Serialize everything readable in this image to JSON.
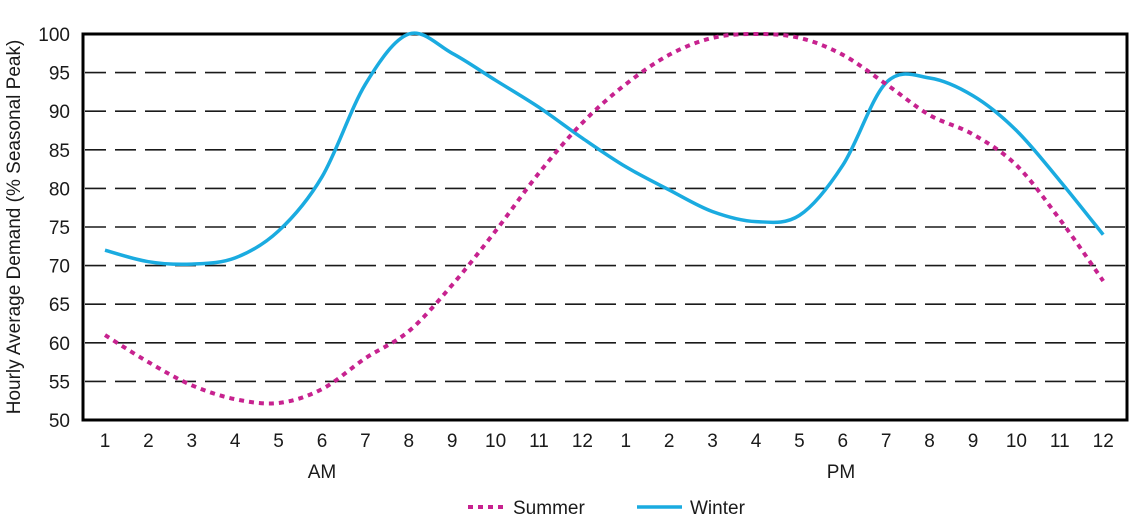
{
  "chart_data": {
    "type": "line",
    "ylabel": "Hourly Average Demand (% Seasonal Peak)",
    "ylim": [
      50,
      100
    ],
    "y_ticks": [
      "50",
      "55",
      "60",
      "65",
      "70",
      "75",
      "80",
      "85",
      "90",
      "95",
      "100"
    ],
    "x_tick_labels": [
      "1",
      "2",
      "3",
      "4",
      "5",
      "6",
      "7",
      "8",
      "9",
      "10",
      "11",
      "12",
      "1",
      "2",
      "3",
      "4",
      "5",
      "6",
      "7",
      "8",
      "9",
      "10",
      "11",
      "12"
    ],
    "period_labels": [
      "AM",
      "PM"
    ],
    "grid": "dashed horizontal at 55, 60, 65, 70, 75, 80, 85, 90, 95",
    "legend_position": "bottom-center",
    "series": [
      {
        "name": "Summer",
        "color": "#c7228f",
        "style": "dashed",
        "x": [
          1,
          2,
          3,
          4,
          5,
          6,
          7,
          8,
          9,
          10,
          11,
          12,
          13,
          14,
          15,
          16,
          17,
          18,
          19,
          20,
          21,
          22,
          23,
          24
        ],
        "values": [
          61,
          57.5,
          54.5,
          52.7,
          52.2,
          54,
          58,
          61.5,
          67.5,
          74.5,
          82,
          88.5,
          93.5,
          97.3,
          99.5,
          100,
          99.5,
          97.3,
          93.5,
          89.5,
          87,
          83,
          76,
          68
        ]
      },
      {
        "name": "Winter",
        "color": "#1aabe0",
        "style": "solid",
        "x": [
          1,
          2,
          3,
          4,
          5,
          6,
          7,
          8,
          9,
          10,
          11,
          12,
          13,
          14,
          15,
          16,
          17,
          18,
          19,
          20,
          21,
          22,
          23,
          24
        ],
        "values": [
          72,
          70.5,
          70.2,
          71,
          74.5,
          81.5,
          93.5,
          100,
          97.5,
          94,
          90.5,
          86.5,
          82.8,
          79.8,
          77,
          75.7,
          76.5,
          83,
          93.7,
          94.3,
          92,
          87.5,
          81,
          74
        ]
      }
    ]
  }
}
